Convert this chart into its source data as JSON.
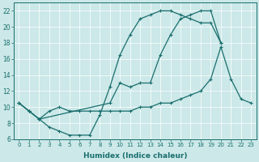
{
  "xlabel": "Humidex (Indice chaleur)",
  "bg_color": "#cce8e8",
  "line_color": "#1a6e6e",
  "marker": "+",
  "xlim": [
    -0.5,
    23.5
  ],
  "ylim": [
    6,
    23
  ],
  "xticks": [
    0,
    1,
    2,
    3,
    4,
    5,
    6,
    7,
    8,
    9,
    10,
    11,
    12,
    13,
    14,
    15,
    16,
    17,
    18,
    19,
    20,
    21,
    22,
    23
  ],
  "yticks": [
    6,
    8,
    10,
    12,
    14,
    16,
    18,
    20,
    22
  ],
  "curve1": {
    "x": [
      0,
      1,
      2,
      3,
      4,
      5,
      6,
      7,
      8,
      9,
      10,
      11,
      12,
      13,
      14,
      15,
      16,
      17,
      18,
      19,
      20
    ],
    "y": [
      10.5,
      9.5,
      8.5,
      7.5,
      7.0,
      6.5,
      6.5,
      6.5,
      9.0,
      12.5,
      16.5,
      19.0,
      21.0,
      21.5,
      22.0,
      22.0,
      21.5,
      21.0,
      20.5,
      20.5,
      18.0
    ]
  },
  "curve2": {
    "x": [
      0,
      1,
      2,
      9,
      10,
      11,
      12,
      13,
      14,
      15,
      16,
      17,
      18,
      19,
      20
    ],
    "y": [
      10.5,
      9.5,
      8.5,
      10.5,
      13.0,
      12.5,
      13.0,
      13.0,
      16.5,
      19.0,
      21.0,
      21.5,
      22.0,
      22.0,
      18.0
    ]
  },
  "curve3": {
    "x": [
      0,
      1,
      2,
      3,
      4,
      5,
      6,
      7,
      8,
      9,
      10,
      11,
      12,
      13,
      14,
      15,
      16,
      17,
      18,
      19,
      20,
      21,
      22,
      23
    ],
    "y": [
      10.5,
      9.5,
      8.5,
      9.5,
      10.0,
      9.5,
      9.5,
      9.5,
      9.5,
      9.5,
      9.5,
      9.5,
      10.0,
      10.0,
      10.5,
      10.5,
      11.0,
      11.5,
      12.0,
      13.5,
      17.5,
      13.5,
      11.0,
      10.5
    ]
  }
}
